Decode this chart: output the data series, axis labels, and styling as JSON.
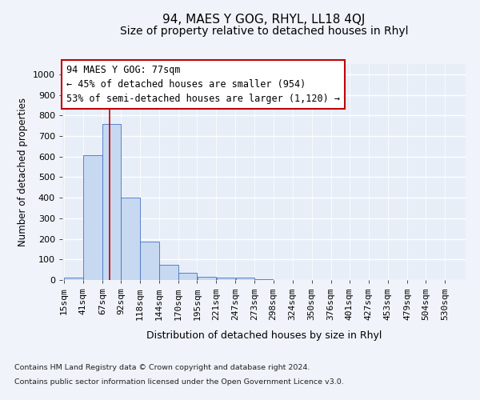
{
  "title": "94, MAES Y GOG, RHYL, LL18 4QJ",
  "subtitle": "Size of property relative to detached houses in Rhyl",
  "xlabel": "Distribution of detached houses by size in Rhyl",
  "ylabel": "Number of detached properties",
  "bar_labels": [
    "15sqm",
    "41sqm",
    "67sqm",
    "92sqm",
    "118sqm",
    "144sqm",
    "170sqm",
    "195sqm",
    "221sqm",
    "247sqm",
    "273sqm",
    "298sqm",
    "324sqm",
    "350sqm",
    "376sqm",
    "401sqm",
    "427sqm",
    "453sqm",
    "479sqm",
    "504sqm",
    "530sqm"
  ],
  "bar_values": [
    10,
    605,
    760,
    400,
    185,
    75,
    35,
    15,
    10,
    10,
    5,
    0,
    0,
    0,
    0,
    0,
    0,
    0,
    0,
    0,
    0
  ],
  "bar_color": "#c6d9f1",
  "bar_edge_color": "#4472c4",
  "ylim": [
    0,
    1050
  ],
  "yticks": [
    0,
    100,
    200,
    300,
    400,
    500,
    600,
    700,
    800,
    900,
    1000
  ],
  "vline_x": 77,
  "vline_color": "#c00000",
  "annotation_text": "94 MAES Y GOG: 77sqm\n← 45% of detached houses are smaller (954)\n53% of semi-detached houses are larger (1,120) →",
  "annotation_box_color": "#c00000",
  "background_color": "#f0f4fa",
  "footer_line1": "Contains HM Land Registry data © Crown copyright and database right 2024.",
  "footer_line2": "Contains public sector information licensed under the Open Government Licence v3.0.",
  "title_fontsize": 11,
  "subtitle_fontsize": 10,
  "tick_fontsize": 8,
  "annotation_fontsize": 8.5,
  "grid_color": "#ffffff",
  "axes_bg_color": "#e8eef8",
  "bin_edges": [
    15,
    41,
    67,
    92,
    118,
    144,
    170,
    195,
    221,
    247,
    273,
    298,
    324,
    350,
    376,
    401,
    427,
    453,
    479,
    504,
    530
  ]
}
